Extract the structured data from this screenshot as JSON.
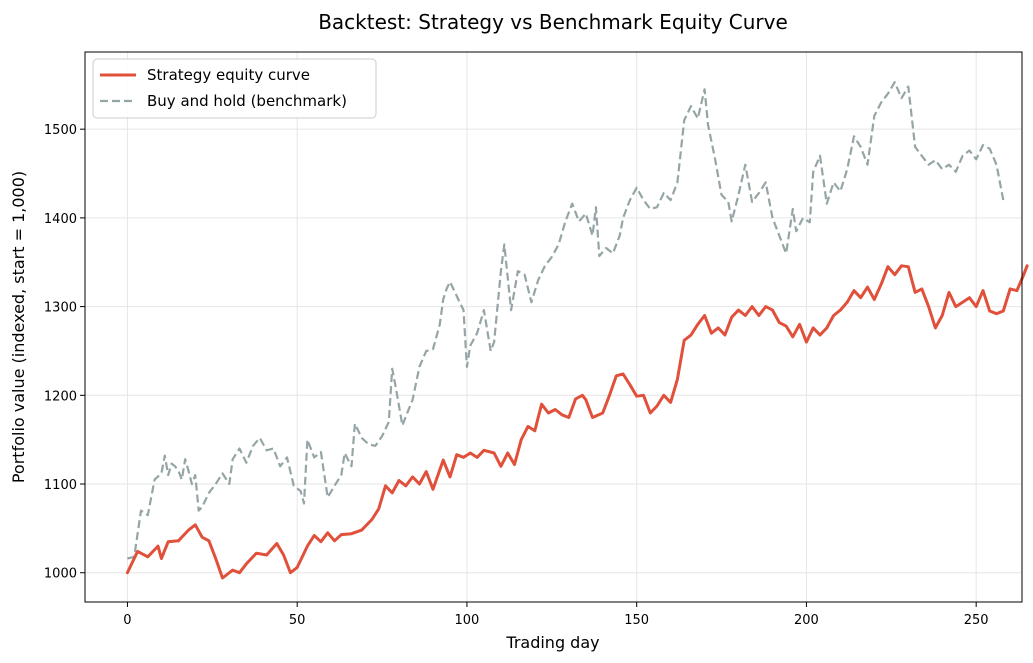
{
  "chart_data": {
    "type": "line",
    "title": "Backtest: Strategy vs Benchmark Equity Curve",
    "xlabel": "Trading day",
    "ylabel": "Portfolio value (indexed, start = 1,000)",
    "xlim": [
      -12.5,
      263.5
    ],
    "ylim": [
      967,
      1587
    ],
    "xticks": [
      0,
      50,
      100,
      150,
      200,
      250
    ],
    "yticks": [
      1000,
      1100,
      1200,
      1300,
      1400,
      1500
    ],
    "grid": true,
    "legend": "top-left",
    "series": [
      {
        "name": "Strategy equity curve",
        "color": "#e0503a",
        "style": "solid",
        "points": [
          [
            0,
            1000
          ],
          [
            3,
            1024
          ],
          [
            6,
            1018
          ],
          [
            9,
            1030
          ],
          [
            10,
            1016
          ],
          [
            12,
            1035
          ],
          [
            15,
            1036
          ],
          [
            18,
            1048
          ],
          [
            20,
            1054
          ],
          [
            22,
            1040
          ],
          [
            24,
            1036
          ],
          [
            26,
            1016
          ],
          [
            28,
            994
          ],
          [
            31,
            1003
          ],
          [
            33,
            1000
          ],
          [
            35,
            1010
          ],
          [
            38,
            1022
          ],
          [
            41,
            1020
          ],
          [
            44,
            1033
          ],
          [
            46,
            1020
          ],
          [
            48,
            1000
          ],
          [
            50,
            1006
          ],
          [
            53,
            1030
          ],
          [
            55,
            1042
          ],
          [
            57,
            1035
          ],
          [
            59,
            1045
          ],
          [
            61,
            1036
          ],
          [
            63,
            1043
          ],
          [
            66,
            1044
          ],
          [
            69,
            1048
          ],
          [
            72,
            1060
          ],
          [
            74,
            1072
          ],
          [
            76,
            1098
          ],
          [
            78,
            1090
          ],
          [
            80,
            1104
          ],
          [
            82,
            1098
          ],
          [
            84,
            1108
          ],
          [
            86,
            1100
          ],
          [
            88,
            1114
          ],
          [
            90,
            1094
          ],
          [
            93,
            1127
          ],
          [
            95,
            1108
          ],
          [
            97,
            1133
          ],
          [
            99,
            1130
          ],
          [
            101,
            1135
          ],
          [
            103,
            1130
          ],
          [
            105,
            1138
          ],
          [
            108,
            1135
          ],
          [
            110,
            1120
          ],
          [
            112,
            1135
          ],
          [
            114,
            1122
          ],
          [
            116,
            1150
          ],
          [
            118,
            1165
          ],
          [
            120,
            1160
          ],
          [
            122,
            1190
          ],
          [
            124,
            1180
          ],
          [
            126,
            1184
          ],
          [
            128,
            1178
          ],
          [
            130,
            1175
          ],
          [
            132,
            1196
          ],
          [
            134,
            1200
          ],
          [
            135,
            1195
          ],
          [
            137,
            1175
          ],
          [
            140,
            1180
          ],
          [
            142,
            1200
          ],
          [
            144,
            1222
          ],
          [
            146,
            1224
          ],
          [
            148,
            1212
          ],
          [
            150,
            1199
          ],
          [
            152,
            1200
          ],
          [
            154,
            1180
          ],
          [
            156,
            1188
          ],
          [
            158,
            1200
          ],
          [
            160,
            1192
          ],
          [
            162,
            1218
          ],
          [
            164,
            1262
          ],
          [
            166,
            1268
          ],
          [
            168,
            1280
          ],
          [
            170,
            1290
          ],
          [
            172,
            1270
          ],
          [
            174,
            1276
          ],
          [
            176,
            1268
          ],
          [
            178,
            1288
          ],
          [
            180,
            1296
          ],
          [
            182,
            1290
          ],
          [
            184,
            1300
          ],
          [
            186,
            1290
          ],
          [
            188,
            1300
          ],
          [
            190,
            1296
          ],
          [
            192,
            1282
          ],
          [
            194,
            1278
          ],
          [
            196,
            1266
          ],
          [
            198,
            1280
          ],
          [
            200,
            1260
          ],
          [
            202,
            1276
          ],
          [
            204,
            1268
          ],
          [
            206,
            1276
          ],
          [
            208,
            1290
          ],
          [
            210,
            1296
          ],
          [
            212,
            1305
          ],
          [
            214,
            1318
          ],
          [
            216,
            1310
          ],
          [
            218,
            1322
          ],
          [
            220,
            1308
          ],
          [
            222,
            1325
          ],
          [
            224,
            1345
          ],
          [
            226,
            1336
          ],
          [
            228,
            1346
          ],
          [
            230,
            1345
          ],
          [
            232,
            1316
          ],
          [
            234,
            1320
          ],
          [
            236,
            1300
          ],
          [
            238,
            1276
          ],
          [
            240,
            1290
          ],
          [
            242,
            1316
          ],
          [
            244,
            1300
          ],
          [
            246,
            1305
          ],
          [
            248,
            1310
          ],
          [
            250,
            1300
          ],
          [
            252,
            1318
          ],
          [
            254,
            1295
          ],
          [
            256,
            1292
          ],
          [
            258,
            1295
          ],
          [
            260,
            1320
          ],
          [
            262,
            1318
          ],
          [
            264,
            1336
          ],
          [
            265,
            1346
          ]
        ]
      },
      {
        "name": "Buy and hold (benchmark)",
        "color": "#95a5a6",
        "style": "dashed",
        "points": [
          [
            0,
            1016
          ],
          [
            2,
            1018
          ],
          [
            4,
            1070
          ],
          [
            6,
            1065
          ],
          [
            8,
            1105
          ],
          [
            10,
            1112
          ],
          [
            11,
            1132
          ],
          [
            12,
            1110
          ],
          [
            13,
            1123
          ],
          [
            14,
            1120
          ],
          [
            15,
            1115
          ],
          [
            16,
            1105
          ],
          [
            17,
            1128
          ],
          [
            18,
            1115
          ],
          [
            19,
            1100
          ],
          [
            20,
            1110
          ],
          [
            21,
            1070
          ],
          [
            22,
            1074
          ],
          [
            24,
            1090
          ],
          [
            26,
            1100
          ],
          [
            28,
            1112
          ],
          [
            30,
            1100
          ],
          [
            31,
            1128
          ],
          [
            33,
            1140
          ],
          [
            35,
            1124
          ],
          [
            37,
            1143
          ],
          [
            39,
            1152
          ],
          [
            41,
            1138
          ],
          [
            43,
            1140
          ],
          [
            45,
            1120
          ],
          [
            47,
            1130
          ],
          [
            49,
            1098
          ],
          [
            51,
            1092
          ],
          [
            52,
            1078
          ],
          [
            53,
            1150
          ],
          [
            55,
            1130
          ],
          [
            57,
            1136
          ],
          [
            59,
            1085
          ],
          [
            61,
            1098
          ],
          [
            63,
            1110
          ],
          [
            64,
            1135
          ],
          [
            66,
            1120
          ],
          [
            67,
            1168
          ],
          [
            69,
            1152
          ],
          [
            71,
            1145
          ],
          [
            73,
            1143
          ],
          [
            75,
            1154
          ],
          [
            77,
            1170
          ],
          [
            78,
            1230
          ],
          [
            79,
            1210
          ],
          [
            81,
            1166
          ],
          [
            82,
            1176
          ],
          [
            84,
            1195
          ],
          [
            86,
            1232
          ],
          [
            88,
            1250
          ],
          [
            90,
            1252
          ],
          [
            92,
            1280
          ],
          [
            93,
            1308
          ],
          [
            94,
            1320
          ],
          [
            95,
            1328
          ],
          [
            97,
            1312
          ],
          [
            99,
            1296
          ],
          [
            100,
            1232
          ],
          [
            101,
            1256
          ],
          [
            103,
            1270
          ],
          [
            105,
            1296
          ],
          [
            107,
            1250
          ],
          [
            108,
            1260
          ],
          [
            110,
            1340
          ],
          [
            111,
            1370
          ],
          [
            113,
            1296
          ],
          [
            115,
            1340
          ],
          [
            117,
            1336
          ],
          [
            119,
            1305
          ],
          [
            121,
            1330
          ],
          [
            123,
            1346
          ],
          [
            125,
            1356
          ],
          [
            127,
            1370
          ],
          [
            129,
            1396
          ],
          [
            131,
            1416
          ],
          [
            133,
            1396
          ],
          [
            135,
            1405
          ],
          [
            137,
            1380
          ],
          [
            138,
            1412
          ],
          [
            139,
            1357
          ],
          [
            141,
            1366
          ],
          [
            143,
            1360
          ],
          [
            145,
            1380
          ],
          [
            146,
            1400
          ],
          [
            148,
            1420
          ],
          [
            150,
            1434
          ],
          [
            152,
            1420
          ],
          [
            154,
            1410
          ],
          [
            156,
            1412
          ],
          [
            158,
            1428
          ],
          [
            160,
            1420
          ],
          [
            162,
            1440
          ],
          [
            164,
            1510
          ],
          [
            166,
            1526
          ],
          [
            168,
            1512
          ],
          [
            170,
            1545
          ],
          [
            171,
            1505
          ],
          [
            173,
            1468
          ],
          [
            175,
            1426
          ],
          [
            177,
            1418
          ],
          [
            178,
            1396
          ],
          [
            180,
            1426
          ],
          [
            182,
            1460
          ],
          [
            184,
            1418
          ],
          [
            186,
            1428
          ],
          [
            188,
            1440
          ],
          [
            190,
            1400
          ],
          [
            192,
            1380
          ],
          [
            194,
            1360
          ],
          [
            196,
            1410
          ],
          [
            197,
            1385
          ],
          [
            199,
            1400
          ],
          [
            201,
            1395
          ],
          [
            202,
            1452
          ],
          [
            204,
            1470
          ],
          [
            206,
            1416
          ],
          [
            208,
            1440
          ],
          [
            210,
            1430
          ],
          [
            212,
            1455
          ],
          [
            214,
            1492
          ],
          [
            216,
            1480
          ],
          [
            218,
            1460
          ],
          [
            220,
            1515
          ],
          [
            222,
            1530
          ],
          [
            224,
            1540
          ],
          [
            226,
            1553
          ],
          [
            228,
            1535
          ],
          [
            230,
            1548
          ],
          [
            232,
            1480
          ],
          [
            234,
            1470
          ],
          [
            236,
            1460
          ],
          [
            238,
            1465
          ],
          [
            240,
            1455
          ],
          [
            242,
            1460
          ],
          [
            244,
            1452
          ],
          [
            246,
            1470
          ],
          [
            248,
            1476
          ],
          [
            250,
            1466
          ],
          [
            252,
            1482
          ],
          [
            254,
            1478
          ],
          [
            256,
            1460
          ],
          [
            258,
            1420
          ]
        ]
      }
    ]
  }
}
